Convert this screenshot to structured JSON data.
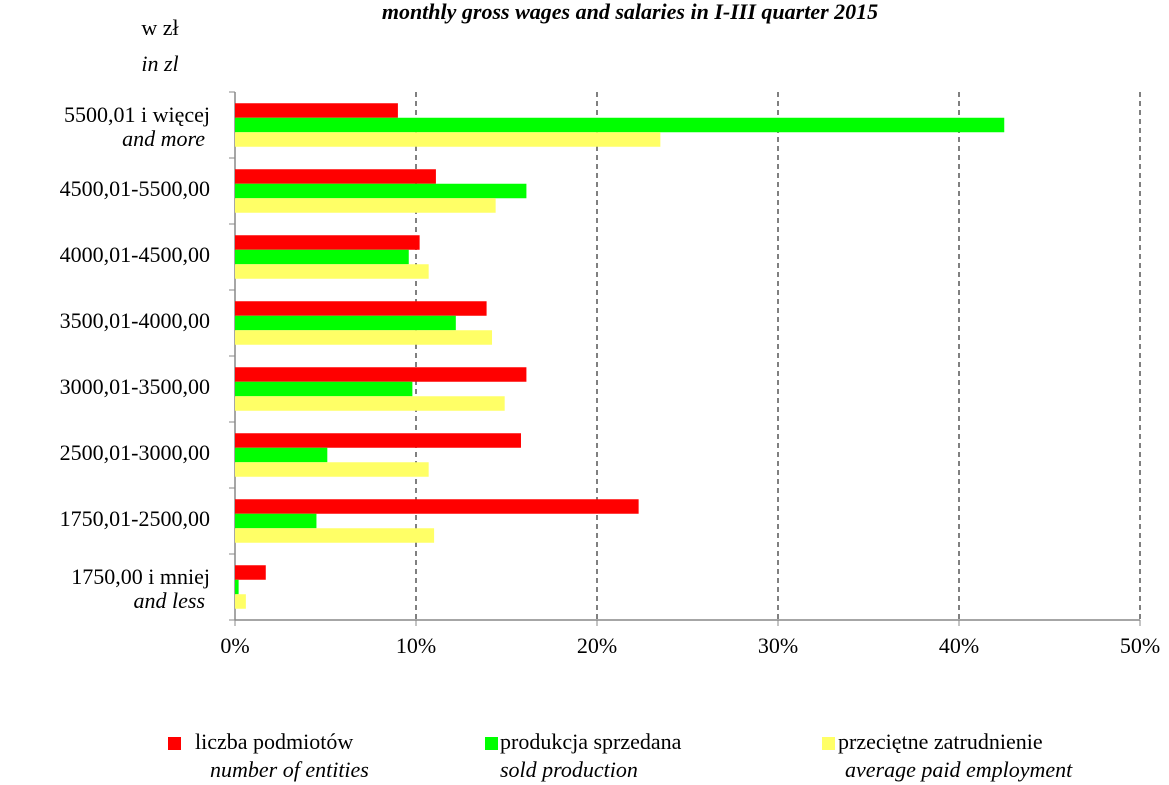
{
  "chart_data": {
    "type": "barh",
    "title": "monthly gross wages and salaries in I-III quarter 2015",
    "y_axis_label": "w zł",
    "y_axis_label_en": "in zl",
    "categories": [
      "5500,01 i więcej",
      "4500,01-5500,00",
      "4000,01-4500,00",
      "3500,01-4000,00",
      "3000,01-3500,00",
      "2500,01-3000,00",
      "1750,01-2500,00",
      "1750,00 i mniej"
    ],
    "categories_en": [
      "and more",
      null,
      null,
      null,
      null,
      null,
      null,
      "and less"
    ],
    "series": [
      {
        "name": "liczba podmiotów",
        "name_en": "number of entities",
        "color": "#ff0000",
        "values": [
          9.0,
          11.1,
          10.2,
          13.9,
          16.1,
          15.8,
          22.3,
          1.7
        ]
      },
      {
        "name": "produkcja sprzedana",
        "name_en": "sold production",
        "color": "#00ff00",
        "values": [
          42.5,
          16.1,
          9.6,
          12.2,
          9.8,
          5.1,
          4.5,
          0.2
        ]
      },
      {
        "name": "przeciętne zatrudnienie",
        "name_en": "average paid employment",
        "color": "#ffff66",
        "values": [
          23.5,
          14.4,
          10.7,
          14.2,
          14.9,
          10.7,
          11.0,
          0.6
        ]
      }
    ],
    "xlim": [
      0,
      50
    ],
    "xticks": [
      {
        "value": 0,
        "label": "0%"
      },
      {
        "value": 10,
        "label": "10%"
      },
      {
        "value": 20,
        "label": "20%"
      },
      {
        "value": 30,
        "label": "30%"
      },
      {
        "value": 40,
        "label": "40%"
      },
      {
        "value": 50,
        "label": "50%"
      }
    ],
    "grid": true
  }
}
